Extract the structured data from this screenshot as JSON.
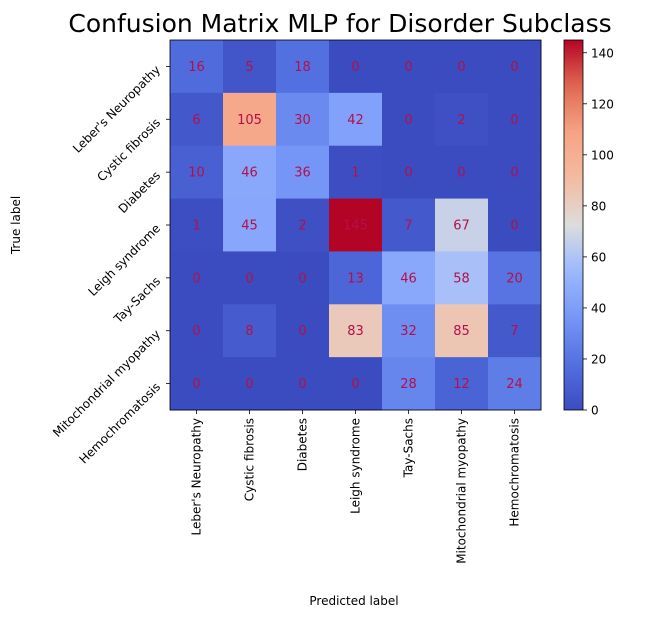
{
  "chart_data": {
    "type": "heatmap",
    "title": "Confusion Matrix MLP for Disorder Subclass",
    "xlabel": "Predicted label",
    "ylabel": "True label",
    "row_labels": [
      "Leber's Neuropathy",
      "Cystic fibrosis",
      "Diabetes",
      "Leigh syndrome",
      "Tay-Sachs",
      "Mitochondrial myopathy",
      "Hemochromatosis"
    ],
    "col_labels": [
      "Leber's Neuropathy",
      "Cystic fibrosis",
      "Diabetes",
      "Leigh syndrome",
      "Tay-Sachs",
      "Mitochondrial myopathy",
      "Hemochromatosis"
    ],
    "values": [
      [
        16,
        5,
        18,
        0,
        0,
        0,
        0
      ],
      [
        6,
        105,
        30,
        42,
        0,
        2,
        0
      ],
      [
        10,
        46,
        36,
        1,
        0,
        0,
        0
      ],
      [
        1,
        45,
        2,
        145,
        7,
        67,
        0
      ],
      [
        0,
        0,
        0,
        13,
        46,
        58,
        20
      ],
      [
        0,
        8,
        0,
        83,
        32,
        85,
        7
      ],
      [
        0,
        0,
        0,
        0,
        28,
        12,
        24
      ]
    ],
    "colormap": "coolwarm",
    "vmin": 0,
    "vmax": 145,
    "colorbar_ticks": [
      0,
      20,
      40,
      60,
      80,
      100,
      120,
      140
    ],
    "annotation_color": "#b3104a"
  }
}
